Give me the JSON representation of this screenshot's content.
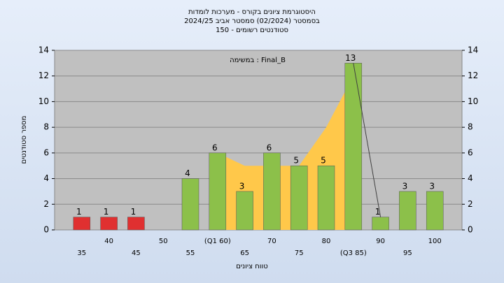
{
  "chart_data": {
    "type": "bar",
    "title": [
      "היסטוגרמת ציונים בקורס - מערכות לומדות",
      "בסמסטר  (02/2024)  סמסטר אביב 2024/25",
      "סטודנטים רשומים - 150"
    ],
    "annotation": "במשימה : Final_B",
    "ylabel": "מספר סטודנטים",
    "xlabel": "טווח ציונים",
    "categories": [
      "35",
      "40",
      "45",
      "50",
      "55",
      "(Q1 60)",
      "65",
      "70",
      "75",
      "80",
      "(Q3 85)",
      "90",
      "95",
      "100"
    ],
    "values": [
      1,
      1,
      1,
      null,
      4,
      6,
      3,
      6,
      5,
      5,
      13,
      1,
      3,
      3
    ],
    "colors": [
      "#e03030",
      "#e03030",
      "#e03030",
      "#8cc04a",
      "#8cc04a",
      "#8cc04a",
      "#8cc04a",
      "#8cc04a",
      "#8cc04a",
      "#8cc04a",
      "#8cc04a",
      "#8cc04a",
      "#8cc04a",
      "#8cc04a"
    ],
    "area": {
      "x": [
        "(Q1 60)",
        "65",
        "70",
        "75",
        "80",
        "(Q3 85)"
      ],
      "values": [
        6,
        5,
        5,
        5,
        8,
        12
      ],
      "color": "#ffc84a"
    },
    "line": {
      "x": [
        "(Q3 85)",
        "90"
      ],
      "values": [
        13,
        1
      ],
      "color": "#404040"
    },
    "ylim": [
      0,
      14
    ],
    "yticks": [
      0,
      2,
      4,
      6,
      8,
      10,
      12,
      14
    ],
    "grid": true
  }
}
